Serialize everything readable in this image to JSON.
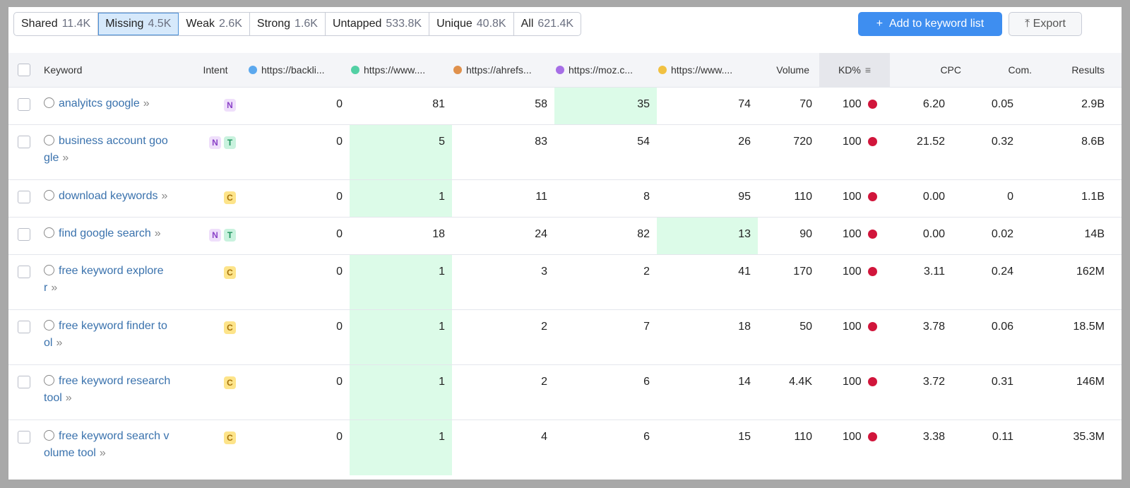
{
  "tabs": [
    {
      "label": "Shared",
      "count": "11.4K"
    },
    {
      "label": "Missing",
      "count": "4.5K"
    },
    {
      "label": "Weak",
      "count": "2.6K"
    },
    {
      "label": "Strong",
      "count": "1.6K"
    },
    {
      "label": "Untapped",
      "count": "533.8K"
    },
    {
      "label": "Unique",
      "count": "40.8K"
    },
    {
      "label": "All",
      "count": "621.4K"
    }
  ],
  "active_tab": 1,
  "buttons": {
    "add": "Add to keyword list",
    "export": "Export"
  },
  "table": {
    "columns": {
      "keyword": "Keyword",
      "intent": "Intent",
      "competitors": [
        {
          "label": "https://backli...",
          "color": "#5ba8ee"
        },
        {
          "label": "https://www....",
          "color": "#52d0a4"
        },
        {
          "label": "https://ahrefs...",
          "color": "#e0914c"
        },
        {
          "label": "https://moz.c...",
          "color": "#a66ee6"
        },
        {
          "label": "https://www....",
          "color": "#f1c141"
        }
      ],
      "volume": "Volume",
      "kd": "KD%",
      "cpc": "CPC",
      "com": "Com.",
      "results": "Results"
    },
    "rows": [
      {
        "keyword": "analyitcs google",
        "intent": [
          "N"
        ],
        "competitors": [
          0,
          81,
          58,
          35,
          74
        ],
        "highlight": 3,
        "volume": "70",
        "kd": "100",
        "cpc": "6.20",
        "com": "0.05",
        "results": "2.9B"
      },
      {
        "keyword": "business account google",
        "intent": [
          "N",
          "T"
        ],
        "competitors": [
          0,
          5,
          83,
          54,
          26
        ],
        "highlight": 1,
        "volume": "720",
        "kd": "100",
        "cpc": "21.52",
        "com": "0.32",
        "results": "8.6B"
      },
      {
        "keyword": "download keywords",
        "intent": [
          "C"
        ],
        "competitors": [
          0,
          1,
          11,
          8,
          95
        ],
        "highlight": 1,
        "volume": "110",
        "kd": "100",
        "cpc": "0.00",
        "com": "0",
        "results": "1.1B"
      },
      {
        "keyword": "find google search",
        "intent": [
          "N",
          "T"
        ],
        "competitors": [
          0,
          18,
          24,
          82,
          13
        ],
        "highlight": 4,
        "volume": "90",
        "kd": "100",
        "cpc": "0.00",
        "com": "0.02",
        "results": "14B"
      },
      {
        "keyword": "free keyword explorer",
        "intent": [
          "C"
        ],
        "competitors": [
          0,
          1,
          3,
          2,
          41
        ],
        "highlight": 1,
        "volume": "170",
        "kd": "100",
        "cpc": "3.11",
        "com": "0.24",
        "results": "162M"
      },
      {
        "keyword": "free keyword finder tool",
        "intent": [
          "C"
        ],
        "competitors": [
          0,
          1,
          2,
          7,
          18
        ],
        "highlight": 1,
        "volume": "50",
        "kd": "100",
        "cpc": "3.78",
        "com": "0.06",
        "results": "18.5M"
      },
      {
        "keyword": "free keyword research tool",
        "intent": [
          "C"
        ],
        "competitors": [
          0,
          1,
          2,
          6,
          14
        ],
        "highlight": 1,
        "volume": "4.4K",
        "kd": "100",
        "cpc": "3.72",
        "com": "0.31",
        "results": "146M"
      },
      {
        "keyword": "free keyword search volume tool",
        "intent": [
          "C"
        ],
        "competitors": [
          0,
          1,
          4,
          6,
          15
        ],
        "highlight": 1,
        "volume": "110",
        "kd": "100",
        "cpc": "3.38",
        "com": "0.11",
        "results": "35.3M"
      }
    ]
  }
}
